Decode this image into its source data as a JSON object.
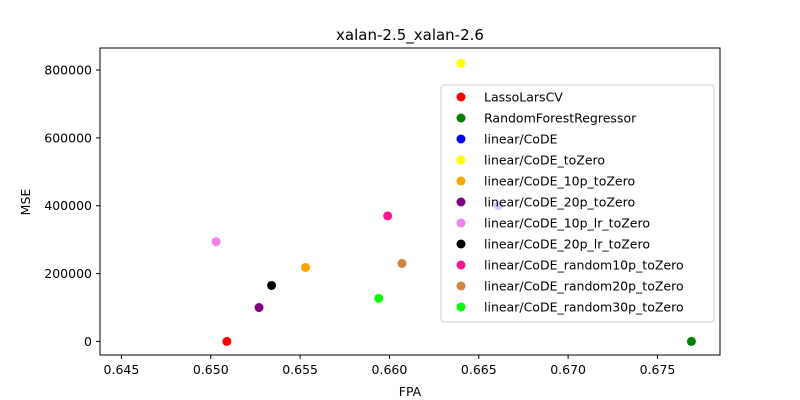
{
  "chart_data": {
    "type": "scatter",
    "title": "xalan-2.5_xalan-2.6",
    "xlabel": "FPA",
    "ylabel": "MSE",
    "xlim": [
      0.6438,
      0.6785
    ],
    "ylim": [
      -40000,
      865000
    ],
    "xticks": [
      "0.645",
      "0.650",
      "0.655",
      "0.660",
      "0.665",
      "0.670",
      "0.675"
    ],
    "xtick_values": [
      0.645,
      0.65,
      0.655,
      0.66,
      0.665,
      0.67,
      0.675
    ],
    "yticks": [
      "0",
      "200000",
      "400000",
      "600000",
      "800000"
    ],
    "ytick_values": [
      0,
      200000,
      400000,
      600000,
      800000
    ],
    "grid": false,
    "legend_position": "right",
    "series": [
      {
        "name": "LassoLarsCV",
        "color": "#ff0000",
        "x": 0.6509,
        "y": 0
      },
      {
        "name": "RandomForestRegressor",
        "color": "#008000",
        "x": 0.6769,
        "y": 0
      },
      {
        "name": "linear/CoDE",
        "color": "#0000ff",
        "x": 0.6661,
        "y": 400000
      },
      {
        "name": "linear/CoDE_toZero",
        "color": "#ffff00",
        "x": 0.664,
        "y": 820000
      },
      {
        "name": "linear/CoDE_10p_toZero",
        "color": "#ffa500",
        "x": 0.6553,
        "y": 218000
      },
      {
        "name": "linear/CoDE_20p_toZero",
        "color": "#800080",
        "x": 0.6527,
        "y": 100000
      },
      {
        "name": "linear/CoDE_10p_lr_toZero",
        "color": "#ee82ee",
        "x": 0.6503,
        "y": 294000
      },
      {
        "name": "linear/CoDE_20p_lr_toZero",
        "color": "#000000",
        "x": 0.6534,
        "y": 165000
      },
      {
        "name": "linear/CoDE_random10p_toZero",
        "color": "#ff1493",
        "x": 0.6599,
        "y": 370000
      },
      {
        "name": "linear/CoDE_random20p_toZero",
        "color": "#cd853f",
        "x": 0.6607,
        "y": 230000
      },
      {
        "name": "linear/CoDE_random30p_toZero",
        "color": "#00ff00",
        "x": 0.6594,
        "y": 127000
      }
    ]
  }
}
